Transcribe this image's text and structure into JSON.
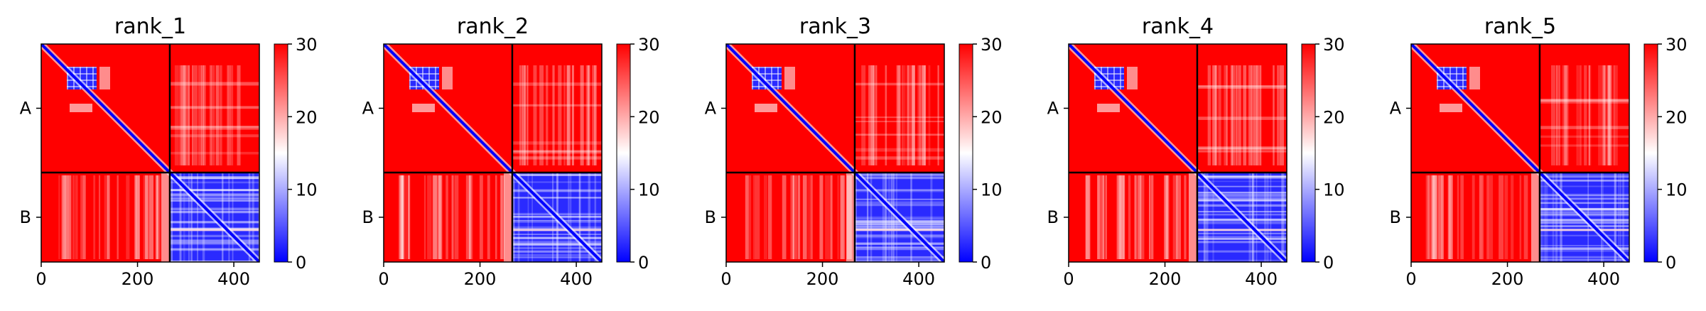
{
  "chart_data": [
    {
      "type": "heatmap",
      "title": "rank_1",
      "x_ticks": [
        0,
        200,
        400
      ],
      "xlim": [
        0,
        453
      ],
      "y_ticks": [
        "A",
        "B"
      ],
      "chain_boundary": 267,
      "colorbar": {
        "min": 0,
        "max": 30,
        "ticks": [
          0,
          10,
          20,
          30
        ],
        "colormap": "bwr",
        "colors": [
          "#0000ff",
          "#ffffff",
          "#ff0000"
        ]
      }
    },
    {
      "type": "heatmap",
      "title": "rank_2",
      "x_ticks": [
        0,
        200,
        400
      ],
      "xlim": [
        0,
        453
      ],
      "y_ticks": [
        "A",
        "B"
      ],
      "chain_boundary": 267,
      "colorbar": {
        "min": 0,
        "max": 30,
        "ticks": [
          0,
          10,
          20,
          30
        ],
        "colormap": "bwr",
        "colors": [
          "#0000ff",
          "#ffffff",
          "#ff0000"
        ]
      }
    },
    {
      "type": "heatmap",
      "title": "rank_3",
      "x_ticks": [
        0,
        200,
        400
      ],
      "xlim": [
        0,
        453
      ],
      "y_ticks": [
        "A",
        "B"
      ],
      "chain_boundary": 267,
      "colorbar": {
        "min": 0,
        "max": 30,
        "ticks": [
          0,
          10,
          20,
          30
        ],
        "colormap": "bwr",
        "colors": [
          "#0000ff",
          "#ffffff",
          "#ff0000"
        ]
      }
    },
    {
      "type": "heatmap",
      "title": "rank_4",
      "x_ticks": [
        0,
        200,
        400
      ],
      "xlim": [
        0,
        453
      ],
      "y_ticks": [
        "A",
        "B"
      ],
      "chain_boundary": 267,
      "colorbar": {
        "min": 0,
        "max": 30,
        "ticks": [
          0,
          10,
          20,
          30
        ],
        "colormap": "bwr",
        "colors": [
          "#0000ff",
          "#ffffff",
          "#ff0000"
        ]
      }
    },
    {
      "type": "heatmap",
      "title": "rank_5",
      "x_ticks": [
        0,
        200,
        400
      ],
      "xlim": [
        0,
        453
      ],
      "y_ticks": [
        "A",
        "B"
      ],
      "chain_boundary": 267,
      "colorbar": {
        "min": 0,
        "max": 30,
        "ticks": [
          0,
          10,
          20,
          30
        ],
        "colormap": "bwr",
        "colors": [
          "#0000ff",
          "#ffffff",
          "#ff0000"
        ]
      }
    }
  ]
}
